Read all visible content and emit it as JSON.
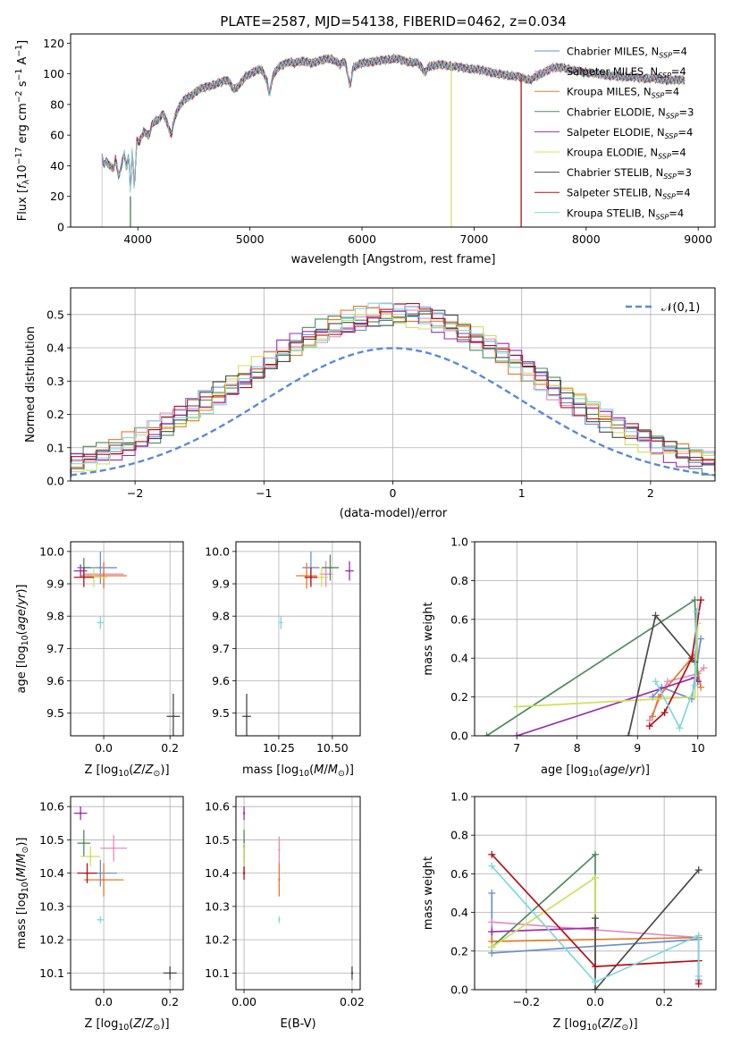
{
  "colors": [
    "#6a8fd6",
    "#e78bc0",
    "#e07b28",
    "#4f8a5e",
    "#9a2cb0",
    "#cfe05c",
    "#4a4a4a",
    "#b3101a",
    "#7fd8dc"
  ],
  "chart_data": [
    {
      "id": "spectrum",
      "type": "line",
      "title": "PLATE=2587, MJD=54138, FIBERID=0462, z=0.034",
      "xlabel": "wavelength [Angstrom, rest frame]",
      "ylabel": "Flux [f_λ 10^-17 erg cm^-2 s^-1 A^-1]",
      "xlim": [
        3400,
        9150
      ],
      "ylim": [
        0,
        126
      ],
      "xticks": [
        4000,
        5000,
        6000,
        7000,
        8000,
        9000
      ],
      "yticks": [
        0,
        20,
        40,
        60,
        80,
        100,
        120
      ],
      "grid": false,
      "legend_position": "top-right",
      "series": [
        {
          "name": "Chabrier MILES, N_SSP=4"
        },
        {
          "name": "Salpeter MILES, N_SSP=4"
        },
        {
          "name": "Kroupa MILES, N_SSP=4"
        },
        {
          "name": "Chabrier ELODIE, N_SSP=3"
        },
        {
          "name": "Salpeter ELODIE, N_SSP=4"
        },
        {
          "name": "Kroupa ELODIE, N_SSP=4"
        },
        {
          "name": "Chabrier STELIB, N_SSP=3"
        },
        {
          "name": "Salpeter STELIB, N_SSP=4"
        },
        {
          "name": "Kroupa STELIB, N_SSP=4"
        }
      ],
      "spectrum": {
        "wavelength": [
          3680,
          3700,
          3720,
          3750,
          3780,
          3800,
          3830,
          3860,
          3880,
          3900,
          3920,
          3934,
          3950,
          3968,
          3990,
          4010,
          4050,
          4102,
          4130,
          4180,
          4230,
          4260,
          4300,
          4330,
          4340,
          4380,
          4430,
          4480,
          4550,
          4640,
          4720,
          4800,
          4861,
          4900,
          4960,
          5000,
          5050,
          5100,
          5150,
          5175,
          5200,
          5250,
          5300,
          5350,
          5400,
          5450,
          5500,
          5550,
          5600,
          5650,
          5700,
          5750,
          5800,
          5850,
          5893,
          5920,
          6000,
          6100,
          6200,
          6300,
          6400,
          6500,
          6563,
          6600,
          6700,
          6800,
          6900,
          7000,
          7100,
          7200,
          7300,
          7400,
          7500,
          7600,
          7700,
          7800,
          7900,
          8000,
          8100,
          8200,
          8300,
          8400,
          8500,
          8600,
          8700,
          8800,
          8880
        ],
        "flux": [
          46,
          40,
          43,
          40,
          38,
          45,
          33,
          42,
          48,
          38,
          48,
          20,
          52,
          24,
          57,
          55,
          62,
          60,
          68,
          70,
          74,
          68,
          60,
          72,
          74,
          80,
          84,
          86,
          90,
          92,
          94,
          96,
          90,
          92,
          98,
          100,
          102,
          103,
          96,
          86,
          98,
          104,
          106,
          108,
          107,
          108,
          108,
          107,
          108,
          109,
          110,
          109,
          106,
          108,
          92,
          104,
          107,
          108,
          109,
          110,
          108,
          107,
          101,
          105,
          106,
          105,
          104,
          103,
          102,
          100,
          99,
          98,
          96,
          100,
          104,
          104,
          102,
          101,
          100,
          99,
          98,
          98,
          97,
          97,
          96,
          96,
          96
        ]
      },
      "dropouts": [
        {
          "wavelength": 3934,
          "flux": 0
        },
        {
          "wavelength": 6797,
          "flux": 0
        },
        {
          "wavelength": 7420,
          "flux": 0
        }
      ]
    },
    {
      "id": "residual-histogram",
      "type": "step",
      "xlabel": "(data-model)/error",
      "ylabel": "Normed distribution",
      "xlim": [
        -2.5,
        2.5
      ],
      "ylim": [
        0,
        0.58
      ],
      "xticks": [
        -2,
        -1,
        0,
        1,
        2
      ],
      "yticks": [
        0.0,
        0.1,
        0.2,
        0.3,
        0.4,
        0.5
      ],
      "grid": true,
      "legend_position": "top-right",
      "legend": "𝒩(0,1)",
      "bin_width": 0.1
    },
    {
      "id": "age-vs-Z",
      "type": "scatter",
      "xlabel": "Z [log10(Z/Z⊙)]",
      "ylabel": "age  [log10(age/yr)]",
      "xlim": [
        -0.1,
        0.24
      ],
      "ylim": [
        9.43,
        10.03
      ],
      "xticks": [
        0.0,
        0.2
      ],
      "yticks": [
        9.5,
        9.6,
        9.7,
        9.8,
        9.9,
        10.0
      ],
      "grid": true,
      "points": [
        {
          "x": -0.01,
          "y": 9.95,
          "xerr": 0.05,
          "yerr": 0.05
        },
        {
          "x": 0.0,
          "y": 9.93,
          "xerr": 0.06,
          "yerr": 0.04
        },
        {
          "x": 0.0,
          "y": 9.925,
          "xerr": 0.07,
          "yerr": 0.04
        },
        {
          "x": -0.06,
          "y": 9.95,
          "xerr": 0.02,
          "yerr": 0.03
        },
        {
          "x": -0.07,
          "y": 9.94,
          "xerr": 0.02,
          "yerr": 0.02
        },
        {
          "x": -0.03,
          "y": 9.92,
          "xerr": 0.04,
          "yerr": 0.03
        },
        {
          "x": 0.21,
          "y": 9.49,
          "xerr": 0.02,
          "yerr": 0.07
        },
        {
          "x": -0.06,
          "y": 9.92,
          "xerr": 0.03,
          "yerr": 0.03
        },
        {
          "x": -0.01,
          "y": 9.78,
          "xerr": 0.01,
          "yerr": 0.02
        }
      ]
    },
    {
      "id": "age-vs-mass",
      "type": "scatter",
      "xlabel": "mass [log10(M/M⊙)]",
      "ylabel": "",
      "xlim": [
        10.05,
        10.63
      ],
      "ylim": [
        9.43,
        10.03
      ],
      "xticks": [
        10.25,
        10.5
      ],
      "yticks": [
        9.5,
        9.6,
        9.7,
        9.8,
        9.9,
        10.0
      ],
      "grid": true,
      "points": [
        {
          "x": 10.4,
          "y": 9.95,
          "xerr": 0.04,
          "yerr": 0.05
        },
        {
          "x": 10.47,
          "y": 9.93,
          "xerr": 0.03,
          "yerr": 0.04
        },
        {
          "x": 10.38,
          "y": 9.925,
          "xerr": 0.05,
          "yerr": 0.04
        },
        {
          "x": 10.49,
          "y": 9.95,
          "xerr": 0.04,
          "yerr": 0.04
        },
        {
          "x": 10.58,
          "y": 9.94,
          "xerr": 0.02,
          "yerr": 0.03
        },
        {
          "x": 10.45,
          "y": 9.92,
          "xerr": 0.03,
          "yerr": 0.03
        },
        {
          "x": 10.1,
          "y": 9.49,
          "xerr": 0.02,
          "yerr": 0.07
        },
        {
          "x": 10.4,
          "y": 9.92,
          "xerr": 0.03,
          "yerr": 0.03
        },
        {
          "x": 10.26,
          "y": 9.78,
          "xerr": 0.01,
          "yerr": 0.02
        }
      ]
    },
    {
      "id": "weight-vs-age",
      "type": "line",
      "xlabel": "age  [log10(age/yr)]",
      "ylabel": "mass weight",
      "xlim": [
        6.3,
        10.3
      ],
      "ylim": [
        0,
        1.0
      ],
      "xticks": [
        7,
        8,
        9,
        10
      ],
      "yticks": [
        0.0,
        0.2,
        0.4,
        0.6,
        0.8,
        1.0
      ],
      "grid": true,
      "series": [
        {
          "x": [
            9.25,
            9.4,
            9.9,
            10.05
          ],
          "y": [
            0.2,
            0.25,
            0.19,
            0.5
          ]
        },
        {
          "x": [
            9.2,
            9.5,
            10.0,
            10.1
          ],
          "y": [
            0.08,
            0.28,
            0.32,
            0.35
          ]
        },
        {
          "x": [
            9.25,
            9.35,
            9.95,
            10.05
          ],
          "y": [
            0.1,
            0.2,
            0.42,
            0.25
          ]
        },
        {
          "x": [
            6.5,
            9.95,
            10.0
          ],
          "y": [
            0.0,
            0.7,
            0.28
          ]
        },
        {
          "x": [
            7.0,
            9.95,
            10.0
          ],
          "y": [
            0.0,
            0.3,
            0.28
          ]
        },
        {
          "x": [
            7.0,
            9.95,
            10.0
          ],
          "y": [
            0.15,
            0.2,
            0.58
          ]
        },
        {
          "x": [
            8.85,
            9.3,
            9.95
          ],
          "y": [
            0.0,
            0.62,
            0.38
          ]
        },
        {
          "x": [
            9.2,
            9.45,
            9.9,
            10.05
          ],
          "y": [
            0.05,
            0.12,
            0.4,
            0.7
          ]
        },
        {
          "x": [
            9.3,
            9.7,
            9.95,
            9.98
          ],
          "y": [
            0.28,
            0.04,
            0.26,
            0.64
          ]
        }
      ]
    },
    {
      "id": "mass-vs-Z",
      "type": "scatter",
      "xlabel": "Z [log10(Z/Z⊙)]",
      "ylabel": "mass [log10(M/M⊙)]",
      "xlim": [
        -0.1,
        0.24
      ],
      "ylim": [
        10.05,
        10.63
      ],
      "xticks": [
        0.0,
        0.2
      ],
      "yticks": [
        10.1,
        10.2,
        10.3,
        10.4,
        10.5,
        10.6
      ],
      "grid": true,
      "points": [
        {
          "x": -0.01,
          "y": 10.4,
          "xerr": 0.05,
          "yerr": 0.04
        },
        {
          "x": 0.03,
          "y": 10.475,
          "xerr": 0.04,
          "yerr": 0.04
        },
        {
          "x": 0.0,
          "y": 10.38,
          "xerr": 0.06,
          "yerr": 0.05
        },
        {
          "x": -0.06,
          "y": 10.49,
          "xerr": 0.02,
          "yerr": 0.04
        },
        {
          "x": -0.07,
          "y": 10.58,
          "xerr": 0.02,
          "yerr": 0.02
        },
        {
          "x": -0.04,
          "y": 10.45,
          "xerr": 0.03,
          "yerr": 0.03
        },
        {
          "x": 0.2,
          "y": 10.1,
          "xerr": 0.02,
          "yerr": 0.02
        },
        {
          "x": -0.05,
          "y": 10.4,
          "xerr": 0.03,
          "yerr": 0.03
        },
        {
          "x": -0.01,
          "y": 10.26,
          "xerr": 0.01,
          "yerr": 0.01
        }
      ]
    },
    {
      "id": "mass-vs-EBV",
      "type": "scatter",
      "xlabel": "E(B-V)",
      "ylabel": "",
      "xlim": [
        -0.0015,
        0.0215
      ],
      "ylim": [
        10.05,
        10.63
      ],
      "xticks": [
        0.0,
        0.02
      ],
      "yticks": [
        10.1,
        10.2,
        10.3,
        10.4,
        10.5,
        10.6
      ],
      "grid": true,
      "points": [
        {
          "x": 0.0,
          "y": 10.45,
          "yerr": 0.05
        },
        {
          "x": 0.0065,
          "y": 10.47,
          "yerr": 0.04
        },
        {
          "x": 0.0065,
          "y": 10.38,
          "yerr": 0.05
        },
        {
          "x": 0.0,
          "y": 10.48,
          "yerr": 0.05
        },
        {
          "x": 0.0,
          "y": 10.58,
          "yerr": 0.02
        },
        {
          "x": 0.0,
          "y": 10.45,
          "yerr": 0.04
        },
        {
          "x": 0.02,
          "y": 10.1,
          "yerr": 0.02
        },
        {
          "x": 0.0,
          "y": 10.4,
          "yerr": 0.02
        },
        {
          "x": 0.0065,
          "y": 10.26,
          "yerr": 0.01
        }
      ]
    },
    {
      "id": "weight-vs-Z",
      "type": "line",
      "xlabel": "Z [log10(Z/Z⊙)]",
      "ylabel": "mass weight",
      "xlim": [
        -0.35,
        0.35
      ],
      "ylim": [
        0,
        1.0
      ],
      "xticks": [
        -0.2,
        0.0,
        0.2
      ],
      "yticks": [
        0.0,
        0.2,
        0.4,
        0.6,
        0.8,
        1.0
      ],
      "grid": true,
      "series": [
        {
          "x": [
            -0.3,
            -0.3,
            0.3,
            0.3
          ],
          "y": [
            0.5,
            0.19,
            0.26,
            0.05
          ]
        },
        {
          "x": [
            -0.3,
            0.3,
            0.3
          ],
          "y": [
            0.35,
            0.27,
            0.04
          ]
        },
        {
          "x": [
            -0.3,
            -0.3,
            0.3
          ],
          "y": [
            0.3,
            0.25,
            0.27
          ]
        },
        {
          "x": [
            -0.3,
            0.0,
            0.0
          ],
          "y": [
            0.22,
            0.7,
            0.0
          ]
        },
        {
          "x": [
            -0.3,
            0.0,
            0.0
          ],
          "y": [
            0.3,
            0.32,
            0.0
          ]
        },
        {
          "x": [
            -0.3,
            0.0,
            0.0
          ],
          "y": [
            0.22,
            0.58,
            0.0
          ]
        },
        {
          "x": [
            0.0,
            0.0,
            0.3
          ],
          "y": [
            0.37,
            0.0,
            0.62
          ]
        },
        {
          "x": [
            -0.3,
            0.0,
            0.3,
            0.3
          ],
          "y": [
            0.7,
            0.12,
            0.15,
            0.03
          ]
        },
        {
          "x": [
            -0.3,
            0.0,
            0.3,
            0.3
          ],
          "y": [
            0.64,
            0.04,
            0.28,
            0.07
          ]
        }
      ]
    }
  ]
}
